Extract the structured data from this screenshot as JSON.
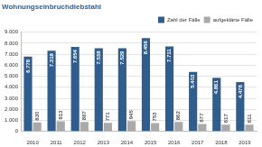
{
  "chart_data": {
    "type": "bar",
    "title": "Wohnungseinbruchdiebstahl",
    "categories": [
      "2010",
      "2011",
      "2012",
      "2013",
      "2014",
      "2015",
      "2016",
      "2017",
      "2018",
      "2019"
    ],
    "series": [
      {
        "name": "Zahl der Fälle",
        "color": "#2f5d8e",
        "values": [
          6778,
          7318,
          7654,
          7538,
          7529,
          8456,
          7711,
          5403,
          4861,
          4476
        ],
        "value_labels": [
          "6.778",
          "7.318",
          "7.654",
          "7.538",
          "7.529",
          "8.456",
          "7.711",
          "5.403",
          "4.861",
          "4.476"
        ]
      },
      {
        "name": "aufgeklärte Fälle",
        "color": "#a9a9a9",
        "values": [
          830,
          913,
          867,
          771,
          945,
          753,
          862,
          677,
          617,
          611
        ]
      }
    ],
    "ylim": [
      0,
      9000
    ],
    "yticks": [
      0,
      {
        "value": 1000,
        "label": "1.000"
      },
      {
        "value": 2000,
        "label": "2.000"
      },
      {
        "value": 3000,
        "label": "3.000"
      },
      {
        "value": 4000,
        "label": "4.000"
      },
      {
        "value": 5000,
        "label": "5.000"
      },
      {
        "value": 6000,
        "label": "6.000"
      },
      {
        "value": 7000,
        "label": "7.000"
      },
      {
        "value": 8000,
        "label": "8.000"
      },
      {
        "value": 9000,
        "label": "9.000"
      }
    ],
    "grid": true,
    "legend": "top",
    "data_labels": true
  }
}
